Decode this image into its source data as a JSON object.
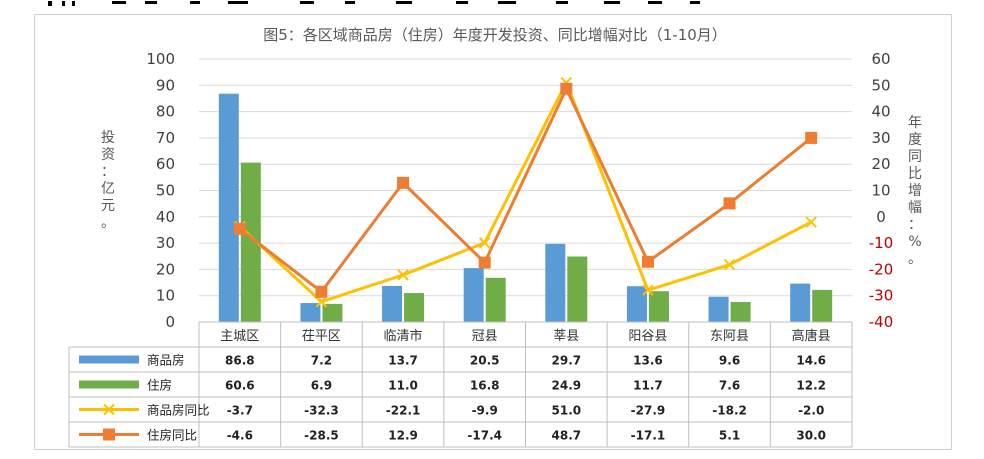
{
  "colors": {
    "bar1": "#5b9bd5",
    "bar2": "#70ad47",
    "line1": "#ffc000",
    "line2": "#ed7d31",
    "neg_tick": "#c00000",
    "pos_tick": "#404040"
  },
  "chart_data": {
    "type": "bar",
    "title": "图5：各区域商品房（住房）年度开发投资、同比增幅对比（1-10月）",
    "ylabel": "投资：亿元。",
    "y2label": "年度同比增幅：%。",
    "ylim": [
      0,
      100
    ],
    "y2lim": [
      -40,
      60
    ],
    "yticks": [
      "0",
      "10",
      "20",
      "30",
      "40",
      "50",
      "60",
      "70",
      "80",
      "90",
      "100"
    ],
    "y2ticks": [
      "-40",
      "-30",
      "-20",
      "-10",
      "0",
      "10",
      "20",
      "30",
      "40",
      "50",
      "60"
    ],
    "grid": true,
    "legend": "data-table",
    "categories": [
      "主城区",
      "茌平区",
      "临清市",
      "冠县",
      "莘县",
      "阳谷县",
      "东阿县",
      "高唐县"
    ],
    "series": [
      {
        "name": "商品房",
        "type": "bar",
        "axis": "left",
        "values": [
          86.8,
          7.2,
          13.7,
          20.5,
          29.7,
          13.6,
          9.6,
          14.6
        ],
        "labels": [
          "86.8",
          "7.2",
          "13.7",
          "20.5",
          "29.7",
          "13.6",
          "9.6",
          "14.6"
        ]
      },
      {
        "name": "住房",
        "type": "bar",
        "axis": "left",
        "values": [
          60.6,
          6.9,
          11.0,
          16.8,
          24.9,
          11.7,
          7.6,
          12.2
        ],
        "labels": [
          "60.6",
          "6.9",
          "11.0",
          "16.8",
          "24.9",
          "11.7",
          "7.6",
          "12.2"
        ]
      },
      {
        "name": "商品房同比",
        "type": "line",
        "axis": "right",
        "marker": "x",
        "values": [
          -3.7,
          -32.3,
          -22.1,
          -9.9,
          51.0,
          -27.9,
          -18.2,
          -2.0
        ],
        "labels": [
          "-3.7",
          "-32.3",
          "-22.1",
          "-9.9",
          "51.0",
          "-27.9",
          "-18.2",
          "-2.0"
        ]
      },
      {
        "name": "住房同比",
        "type": "line",
        "axis": "right",
        "marker": "square",
        "values": [
          -4.6,
          -28.5,
          12.9,
          -17.4,
          48.7,
          -17.1,
          5.1,
          30.0
        ],
        "labels": [
          "-4.6",
          "-28.5",
          "12.9",
          "-17.4",
          "48.7",
          "-17.1",
          "5.1",
          "30.0"
        ]
      }
    ]
  }
}
